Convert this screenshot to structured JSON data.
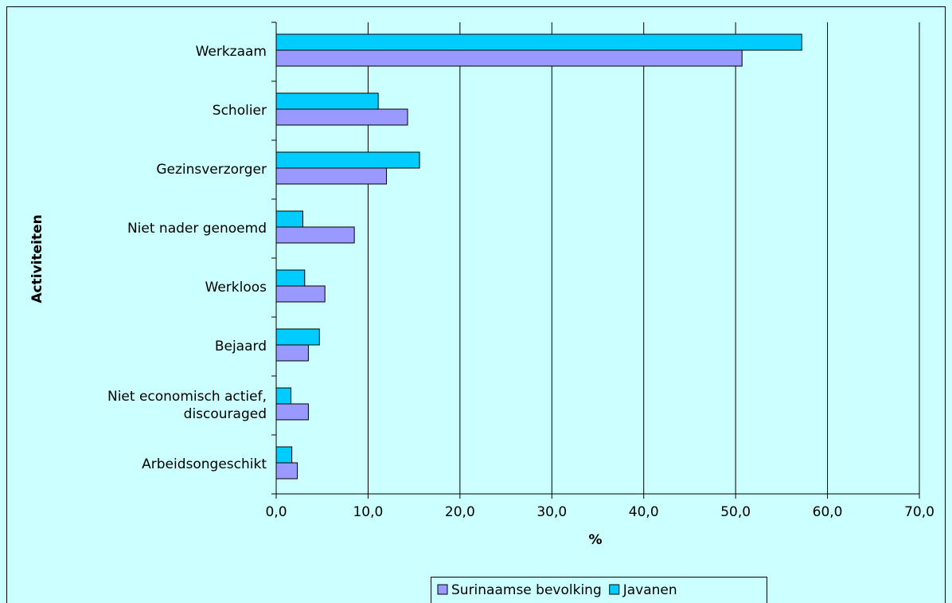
{
  "chart_data": {
    "type": "hbar",
    "categories": [
      "Werkzaam",
      "Scholier",
      "Gezinsverzorger",
      "Niet nader genoemd",
      "Werkloos",
      "Bejaard",
      "Niet economisch actief, discouraged",
      "Arbeidsongeschikt"
    ],
    "series": [
      {
        "name": "Surinaamse bevolking",
        "color": "#9999ff",
        "values": [
          50.7,
          14.3,
          12.0,
          8.5,
          5.3,
          3.5,
          3.5,
          2.3
        ]
      },
      {
        "name": "Javanen",
        "color": "#00ccff",
        "values": [
          57.2,
          11.1,
          15.6,
          2.9,
          3.1,
          4.7,
          1.6,
          1.7
        ]
      }
    ],
    "x_label": "%",
    "y_label": "Activiteiten",
    "xlim": [
      0,
      70
    ],
    "xticks": [
      {
        "value": 0,
        "label": "0,0"
      },
      {
        "value": 10,
        "label": "10,0"
      },
      {
        "value": 20,
        "label": "20,0"
      },
      {
        "value": 30,
        "label": "30,0"
      },
      {
        "value": 40,
        "label": "40,0"
      },
      {
        "value": 50,
        "label": "50,0"
      },
      {
        "value": 60,
        "label": "60,0"
      },
      {
        "value": 70,
        "label": "70,0"
      }
    ],
    "grid": true,
    "legend": "bottom"
  }
}
